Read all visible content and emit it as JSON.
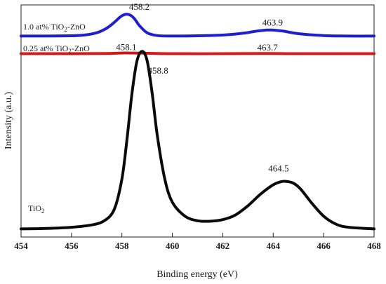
{
  "chart_data": {
    "type": "line",
    "xlabel": "Binding energy (eV)",
    "ylabel": "Intensity (a.u.)",
    "xlim": [
      454,
      468
    ],
    "xticks": [
      "454",
      "456",
      "458",
      "460",
      "462",
      "464",
      "466",
      "468"
    ],
    "grid": false,
    "series": [
      {
        "name": "1.0 at% TiO2-ZnO",
        "label_main": "1.0 at% TiO",
        "label_sub": "2",
        "label_tail": "-ZnO",
        "color": "#1f1fd0",
        "x": [
          454.0,
          455.0,
          456.0,
          456.5,
          457.0,
          457.4,
          457.7,
          457.9,
          458.05,
          458.2,
          458.35,
          458.5,
          458.7,
          459.0,
          459.4,
          460.0,
          461.0,
          462.0,
          462.8,
          463.4,
          463.9,
          464.4,
          465.0,
          466.0,
          467.0,
          468.0
        ],
        "y": [
          0.866,
          0.866,
          0.867,
          0.87,
          0.88,
          0.9,
          0.925,
          0.945,
          0.956,
          0.96,
          0.955,
          0.94,
          0.91,
          0.88,
          0.868,
          0.866,
          0.867,
          0.87,
          0.878,
          0.888,
          0.892,
          0.887,
          0.876,
          0.868,
          0.866,
          0.866
        ]
      },
      {
        "name": "0.25 at% TiO2-ZnO",
        "label_main": "0.25 at% TiO",
        "label_sub": "2",
        "label_tail": "-ZnO",
        "color": "#d01818",
        "x": [
          454.0,
          456.0,
          457.5,
          458.1,
          458.8,
          460.0,
          462.0,
          463.7,
          465.0,
          468.0
        ],
        "y": [
          0.79,
          0.79,
          0.791,
          0.793,
          0.792,
          0.79,
          0.79,
          0.791,
          0.79,
          0.79
        ]
      },
      {
        "name": "TiO2",
        "label_main": "TiO",
        "label_sub": "2",
        "label_tail": "",
        "color": "#0a0a0a",
        "x": [
          454.0,
          455.0,
          456.0,
          456.8,
          457.3,
          457.7,
          458.0,
          458.2,
          458.4,
          458.6,
          458.8,
          459.0,
          459.2,
          459.4,
          459.7,
          460.0,
          460.5,
          461.0,
          461.5,
          462.0,
          462.5,
          463.0,
          463.5,
          464.0,
          464.3,
          464.5,
          464.8,
          465.1,
          465.5,
          466.0,
          466.5,
          467.0,
          468.0
        ],
        "y": [
          0.035,
          0.037,
          0.042,
          0.052,
          0.07,
          0.12,
          0.25,
          0.42,
          0.62,
          0.76,
          0.8,
          0.76,
          0.62,
          0.44,
          0.25,
          0.15,
          0.09,
          0.07,
          0.068,
          0.075,
          0.095,
          0.135,
          0.185,
          0.225,
          0.238,
          0.24,
          0.232,
          0.205,
          0.15,
          0.09,
          0.055,
          0.042,
          0.035
        ]
      }
    ],
    "annotations": [
      {
        "text": "458.2",
        "x": 458.2,
        "y": 0.96
      },
      {
        "text": "463.9",
        "x": 463.9,
        "y": 0.892
      },
      {
        "text": "458.1",
        "x": 458.1,
        "y": 0.793
      },
      {
        "text": "463.7",
        "x": 463.7,
        "y": 0.791
      },
      {
        "text": "458.8",
        "x": 458.8,
        "y": 0.8
      },
      {
        "text": "464.5",
        "x": 464.5,
        "y": 0.24
      }
    ]
  }
}
